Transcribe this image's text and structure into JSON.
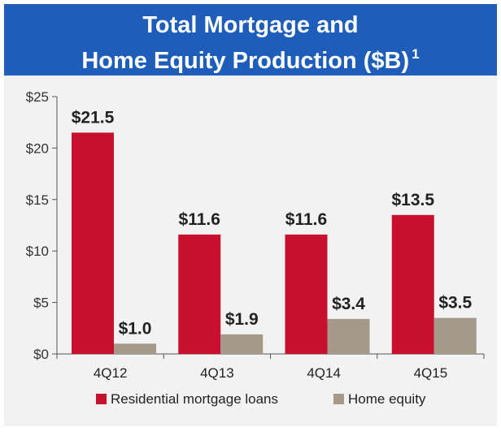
{
  "header": {
    "title_line1": "Total Mortgage and",
    "title_line2": "Home Equity Production ($B)",
    "footnote": "1"
  },
  "colors": {
    "header_bg": "#1f5dbb",
    "residential": "#c8102e",
    "home_equity": "#a59a8a"
  },
  "chart_data": {
    "type": "bar",
    "categories": [
      "4Q12",
      "4Q13",
      "4Q14",
      "4Q15"
    ],
    "series": [
      {
        "name": "Residential mortgage loans",
        "values": [
          21.5,
          11.6,
          11.6,
          13.5
        ],
        "labels": [
          "$21.5",
          "$11.6",
          "$11.6",
          "$13.5"
        ]
      },
      {
        "name": "Home equity",
        "values": [
          1.0,
          1.9,
          3.4,
          3.5
        ],
        "labels": [
          "$1.0",
          "$1.9",
          "$3.4",
          "$3.5"
        ]
      }
    ],
    "ylim": [
      0,
      25
    ],
    "yticks": [
      0,
      5,
      10,
      15,
      20,
      25
    ],
    "ytick_labels": [
      "$0",
      "$5",
      "$10",
      "$15",
      "$20",
      "$25"
    ],
    "legend_position": "bottom",
    "grid": false
  }
}
